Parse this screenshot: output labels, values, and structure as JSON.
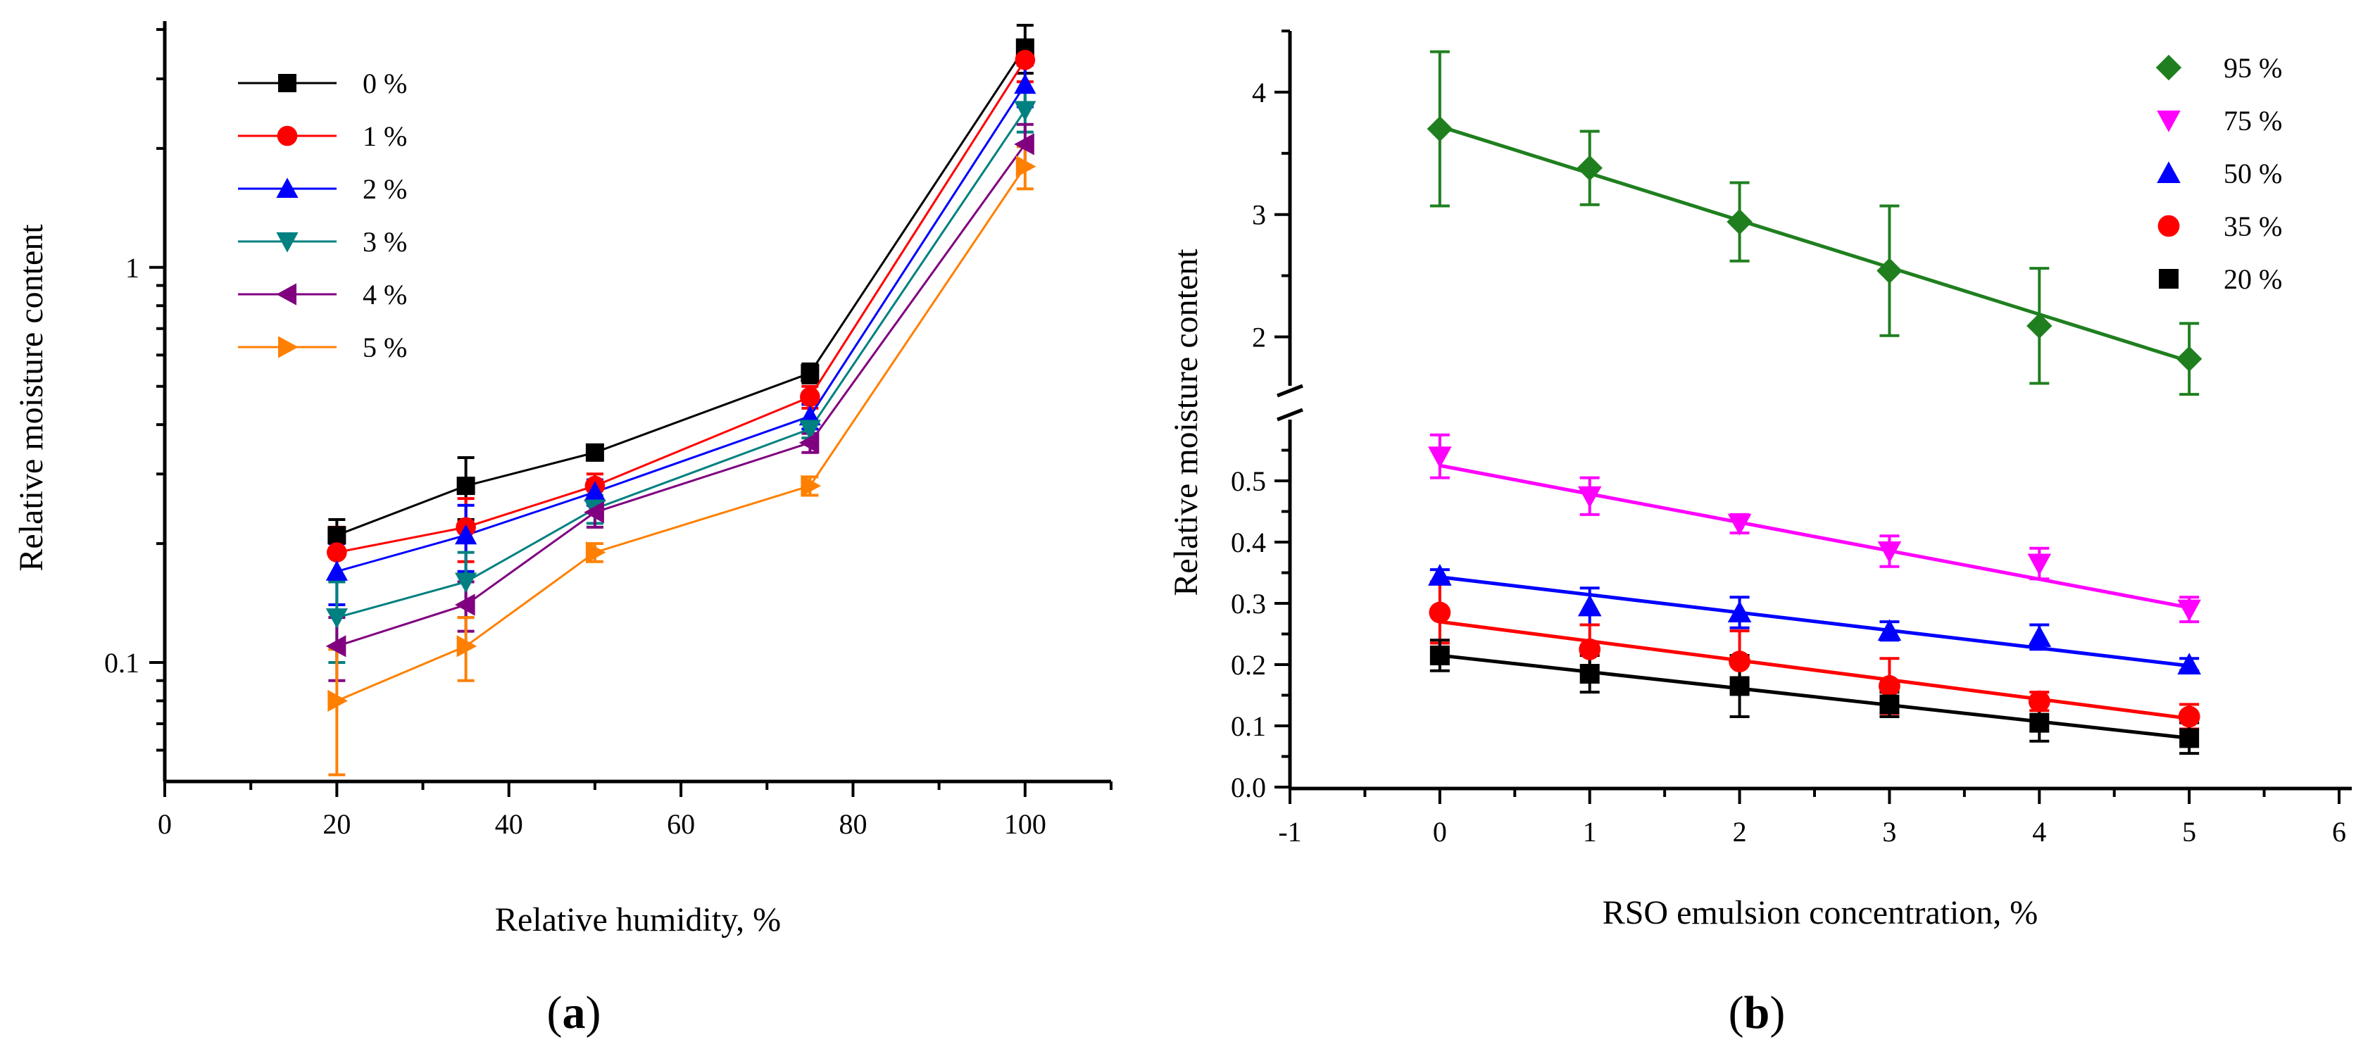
{
  "chart_data": [
    {
      "type": "line",
      "panel": "a",
      "caption_label": "a",
      "xlabel": "Relative humidity, %",
      "ylabel": "Relative moisture content",
      "xscale": "linear",
      "yscale": "log",
      "xlim": [
        0,
        110
      ],
      "ylim": [
        0.05,
        4.2
      ],
      "x_ticks": [
        "0",
        "20",
        "40",
        "60",
        "80",
        "100"
      ],
      "y_ticks": [
        "0.1",
        "1"
      ],
      "legend_position": "top-left",
      "x": [
        20,
        35,
        50,
        75,
        100
      ],
      "series": [
        {
          "name": "0 %",
          "color": "#000000",
          "marker": "square",
          "values": [
            0.21,
            0.28,
            0.34,
            0.54,
            3.6
          ],
          "errors": [
            0.02,
            0.05,
            0.015,
            0.03,
            0.5
          ]
        },
        {
          "name": "1 %",
          "color": "#ff0000",
          "marker": "circle",
          "values": [
            0.19,
            0.22,
            0.28,
            0.47,
            3.35
          ],
          "errors": [
            0.03,
            0.04,
            0.02,
            0.03,
            0.4
          ]
        },
        {
          "name": "2 %",
          "color": "#0000ff",
          "marker": "triangle-up",
          "values": [
            0.17,
            0.21,
            0.27,
            0.42,
            2.9
          ],
          "errors": [
            0.03,
            0.04,
            0.02,
            0.03,
            0.35
          ]
        },
        {
          "name": "3 %",
          "color": "#008080",
          "marker": "triangle-down",
          "values": [
            0.13,
            0.16,
            0.245,
            0.39,
            2.5
          ],
          "errors": [
            0.03,
            0.03,
            0.02,
            0.02,
            0.3
          ]
        },
        {
          "name": "4 %",
          "color": "#800080",
          "marker": "triangle-left",
          "values": [
            0.11,
            0.14,
            0.24,
            0.36,
            2.05
          ],
          "errors": [
            0.02,
            0.02,
            0.02,
            0.02,
            0.25
          ]
        },
        {
          "name": "5 %",
          "color": "#ff8000",
          "marker": "triangle-right",
          "values": [
            0.08,
            0.11,
            0.19,
            0.28,
            1.8
          ],
          "errors": [
            0.028,
            0.02,
            0.01,
            0.015,
            0.22
          ]
        }
      ]
    },
    {
      "type": "scatter",
      "panel": "b",
      "caption_label": "b",
      "xlabel": "RSO emulsion concentration, %",
      "ylabel": "Relative moisture content",
      "xlim": [
        -1,
        6
      ],
      "x_ticks": [
        "-1",
        "0",
        "1",
        "2",
        "3",
        "4",
        "5",
        "6"
      ],
      "y_break": true,
      "ylim_lower": [
        0.0,
        0.6
      ],
      "ylim_upper": [
        1.6,
        4.5
      ],
      "y_ticks_lower": [
        "0.0",
        "0.1",
        "0.2",
        "0.3",
        "0.4",
        "0.5"
      ],
      "y_ticks_upper": [
        "2",
        "3",
        "4"
      ],
      "legend_position": "top-right",
      "x": [
        0,
        1,
        2,
        3,
        4,
        5
      ],
      "series": [
        {
          "name": "95 %",
          "color": "#1f7f1f",
          "marker": "diamond",
          "values": [
            3.7,
            3.38,
            2.94,
            2.54,
            2.09,
            1.82
          ],
          "errors": [
            0.63,
            0.3,
            0.32,
            0.53,
            0.47,
            0.29
          ],
          "fit": [
            3.72,
            1.8
          ]
        },
        {
          "name": "75 %",
          "color": "#ff00ff",
          "marker": "triangle-down",
          "values": [
            0.54,
            0.475,
            0.43,
            0.385,
            0.365,
            0.29
          ],
          "errors": [
            0.035,
            0.03,
            0.015,
            0.025,
            0.025,
            0.02
          ],
          "fit": [
            0.525,
            0.293
          ]
        },
        {
          "name": "50 %",
          "color": "#0000ff",
          "marker": "triangle-up",
          "values": [
            0.345,
            0.295,
            0.285,
            0.255,
            0.245,
            0.2
          ],
          "errors": [
            0.01,
            0.03,
            0.025,
            0.015,
            0.02,
            0.01
          ],
          "fit": [
            0.343,
            0.198
          ]
        },
        {
          "name": "35 %",
          "color": "#ff0000",
          "marker": "circle",
          "values": [
            0.285,
            0.225,
            0.205,
            0.165,
            0.14,
            0.115
          ],
          "errors": [
            0.05,
            0.04,
            0.05,
            0.045,
            0.015,
            0.02
          ],
          "fit": [
            0.27,
            0.112
          ]
        },
        {
          "name": "20 %",
          "color": "#000000",
          "marker": "square",
          "values": [
            0.215,
            0.185,
            0.165,
            0.135,
            0.105,
            0.08
          ],
          "errors": [
            0.025,
            0.03,
            0.05,
            0.02,
            0.03,
            0.025
          ],
          "fit": [
            0.215,
            0.08
          ]
        }
      ]
    }
  ]
}
